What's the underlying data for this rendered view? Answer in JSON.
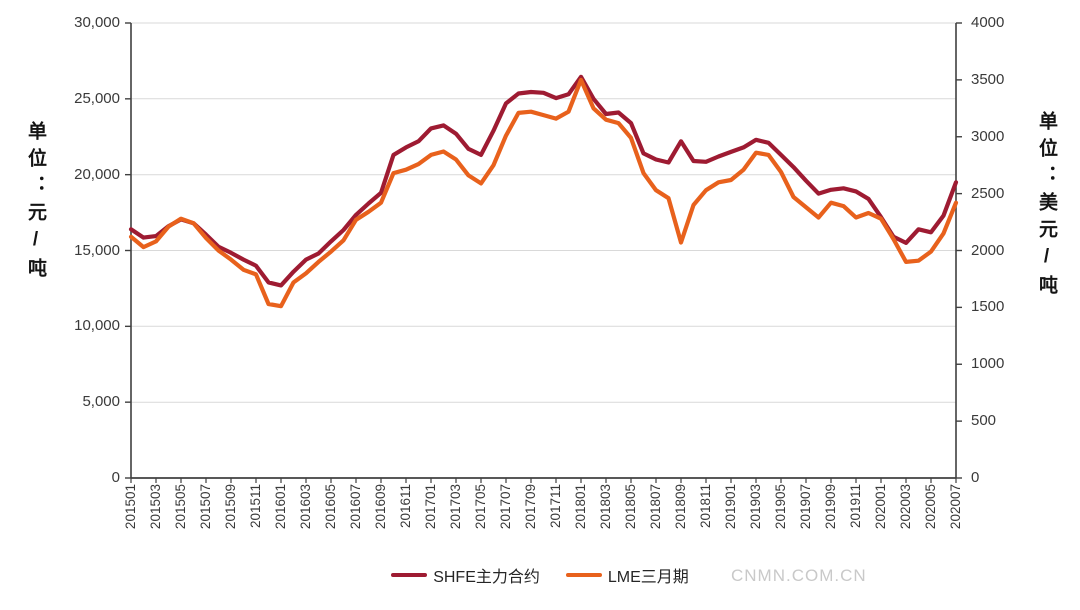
{
  "axes": {
    "left": {
      "unit_label": "单位：元/吨",
      "ticks": [
        "30,000",
        "25,000",
        "20,000",
        "15,000",
        "10,000",
        "5,000",
        "0"
      ]
    },
    "right": {
      "unit_label": "单位：美元/吨",
      "ticks": [
        "4000",
        "3500",
        "3000",
        "2500",
        "2000",
        "1500",
        "1000",
        "500",
        "0"
      ]
    }
  },
  "legend": {
    "items": [
      "SHFE主力合约",
      "LME三月期"
    ]
  },
  "watermark": "CNMN.COM.CN",
  "colors": {
    "shfe": "#9E1B32",
    "lme": "#E8611C",
    "grid": "#d9d9d9",
    "axis": "#404040"
  },
  "chart_data": {
    "type": "line",
    "x": [
      "201501",
      "201502",
      "201503",
      "201504",
      "201505",
      "201506",
      "201507",
      "201508",
      "201509",
      "201510",
      "201511",
      "201512",
      "201601",
      "201602",
      "201603",
      "201604",
      "201605",
      "201606",
      "201607",
      "201608",
      "201609",
      "201610",
      "201611",
      "201612",
      "201701",
      "201702",
      "201703",
      "201704",
      "201705",
      "201706",
      "201707",
      "201708",
      "201709",
      "201710",
      "201711",
      "201712",
      "201801",
      "201802",
      "201803",
      "201804",
      "201805",
      "201806",
      "201807",
      "201808",
      "201809",
      "201810",
      "201811",
      "201812",
      "201901",
      "201902",
      "201903",
      "201904",
      "201905",
      "201906",
      "201907",
      "201908",
      "201909",
      "201910",
      "201911",
      "201912",
      "202001",
      "202002",
      "202003",
      "202004",
      "202005",
      "202006",
      "202007"
    ],
    "x_tick_labels": [
      "201501",
      "201503",
      "201505",
      "201507",
      "201509",
      "201511",
      "201601",
      "201603",
      "201605",
      "201607",
      "201609",
      "201611",
      "201701",
      "201703",
      "201705",
      "201707",
      "201709",
      "201711",
      "201801",
      "201803",
      "201805",
      "201807",
      "201809",
      "201811",
      "201901",
      "201903",
      "201905",
      "201907",
      "201909",
      "201911",
      "202001",
      "202003",
      "202005",
      "202007"
    ],
    "series": [
      {
        "name": "SHFE主力合约",
        "axis": "left",
        "color": "#9E1B32",
        "values": [
          16400,
          15850,
          15950,
          16600,
          17050,
          16800,
          16050,
          15250,
          14850,
          14400,
          14000,
          12900,
          12700,
          13600,
          14400,
          14800,
          15600,
          16350,
          17350,
          18100,
          18800,
          21300,
          21800,
          22200,
          23050,
          23250,
          22700,
          21700,
          21300,
          22900,
          24700,
          25350,
          25450,
          25400,
          25050,
          25300,
          26450,
          25000,
          24000,
          24100,
          23400,
          21400,
          21000,
          20800,
          22200,
          20900,
          20850,
          21200,
          21500,
          21800,
          22300,
          22100,
          21300,
          20500,
          19600,
          18750,
          19000,
          19100,
          18900,
          18400,
          17200,
          15900,
          15500,
          16400,
          16200,
          17300,
          19500
        ]
      },
      {
        "name": "LME三月期",
        "axis": "right",
        "color": "#E8611C",
        "values": [
          2120,
          2030,
          2080,
          2210,
          2280,
          2240,
          2110,
          2000,
          1920,
          1830,
          1790,
          1530,
          1510,
          1720,
          1800,
          1900,
          1990,
          2090,
          2270,
          2340,
          2420,
          2680,
          2710,
          2760,
          2840,
          2870,
          2800,
          2660,
          2590,
          2750,
          3010,
          3210,
          3220,
          3190,
          3160,
          3220,
          3500,
          3250,
          3150,
          3120,
          2990,
          2680,
          2530,
          2460,
          2070,
          2400,
          2530,
          2600,
          2620,
          2710,
          2860,
          2840,
          2690,
          2470,
          2380,
          2290,
          2420,
          2390,
          2290,
          2330,
          2280,
          2100,
          1900,
          1910,
          1990,
          2150,
          2420
        ]
      }
    ],
    "left_ylim": [
      0,
      30000
    ],
    "right_ylim": [
      0,
      4000
    ],
    "left_ylabel": "单位：元/吨",
    "right_ylabel": "单位：美元/吨",
    "grid": true,
    "legend_position": "bottom",
    "title": ""
  }
}
